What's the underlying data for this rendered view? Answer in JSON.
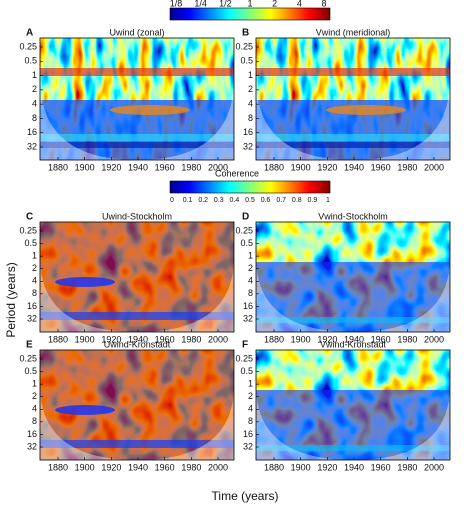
{
  "power_colorbar": {
    "labels": [
      "1/8",
      "1/4",
      "1/2",
      "1",
      "2",
      "4",
      "8"
    ]
  },
  "coherence_colorbar": {
    "title": "Coherence",
    "labels": [
      "0",
      "0.1",
      "0.2",
      "0.3",
      "0.4",
      "0.5",
      "0.6",
      "0.7",
      "0.8",
      "0.9",
      "1"
    ]
  },
  "panels": [
    {
      "letter": "A",
      "title": "Uwind (zonal)"
    },
    {
      "letter": "B",
      "title": "Vwind (meridional)"
    },
    {
      "letter": "C",
      "title": "Uwind-Stockholm"
    },
    {
      "letter": "D",
      "title": "Vwind-Stockholm"
    },
    {
      "letter": "E",
      "title": "Uwind-Kronstadt"
    },
    {
      "letter": "F",
      "title": "Vwind-Kronstadt"
    }
  ],
  "y_axis": {
    "label": "Period (years)",
    "ticks": [
      "0.25",
      "0.5",
      "1",
      "2",
      "4",
      "8",
      "16",
      "32"
    ]
  },
  "x_axis": {
    "label": "Time (years)",
    "ticks": [
      "1880",
      "1900",
      "1920",
      "1940",
      "1960",
      "1980",
      "2000"
    ]
  }
}
